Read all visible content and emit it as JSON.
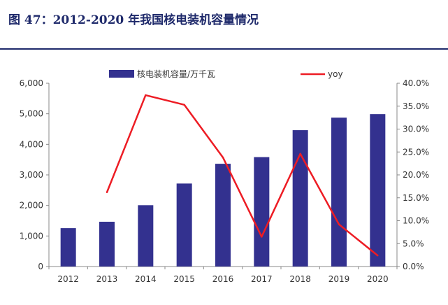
{
  "figure": {
    "title": "图 47：2012-2020 年我国核电装机容量情况"
  },
  "colors": {
    "bar": "#33318F",
    "line": "#ED1C24",
    "title": "#1F2A6B"
  },
  "chart_data": {
    "type": "bar",
    "categories": [
      "2012",
      "2013",
      "2014",
      "2015",
      "2016",
      "2017",
      "2018",
      "2019",
      "2020"
    ],
    "series": [
      {
        "name": "核电装机容量/万千瓦",
        "type": "bar",
        "axis": "left",
        "values": [
          1257,
          1466,
          2008,
          2717,
          3364,
          3582,
          4464,
          4874,
          4989
        ]
      },
      {
        "name": "yoy",
        "type": "line",
        "axis": "right",
        "values": [
          null,
          16.2,
          37.4,
          35.3,
          23.8,
          6.5,
          24.6,
          9.2,
          2.4
        ]
      }
    ],
    "y_left": {
      "range": [
        0,
        6000
      ],
      "ticks": [
        "0",
        "1,000",
        "2,000",
        "3,000",
        "4,000",
        "5,000",
        "6,000"
      ]
    },
    "y_right": {
      "range": [
        0,
        40
      ],
      "ticks": [
        "0.0%",
        "5.0%",
        "10.0%",
        "15.0%",
        "20.0%",
        "25.0%",
        "30.0%",
        "35.0%",
        "40.0%"
      ]
    },
    "grid": false,
    "legend": "top"
  }
}
